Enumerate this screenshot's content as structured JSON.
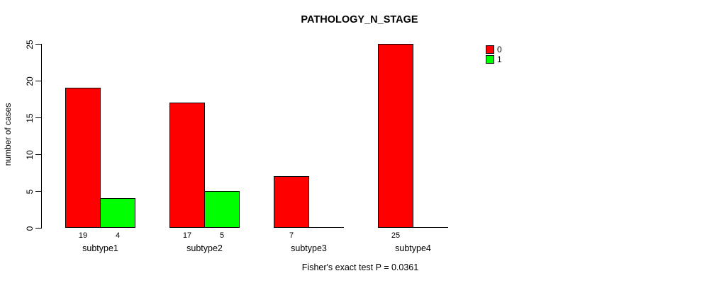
{
  "chart_data": {
    "type": "bar",
    "title": "PATHOLOGY_N_STAGE",
    "ylabel": "number of cases",
    "xlabel": "",
    "categories": [
      "subtype1",
      "subtype2",
      "subtype3",
      "subtype4"
    ],
    "series": [
      {
        "name": "0",
        "color": "#ff0000",
        "values": [
          19,
          17,
          7,
          25
        ]
      },
      {
        "name": "1",
        "color": "#00ff00",
        "values": [
          4,
          5,
          0,
          0
        ]
      }
    ],
    "ylim": [
      0,
      25
    ],
    "yticks": [
      0,
      5,
      10,
      15,
      20,
      25
    ],
    "grid": false,
    "background": "#ffffff",
    "legend_position": "right",
    "value_labels_hide_zero": true,
    "annotation": "Fisher's exact test P = 0.0361"
  }
}
